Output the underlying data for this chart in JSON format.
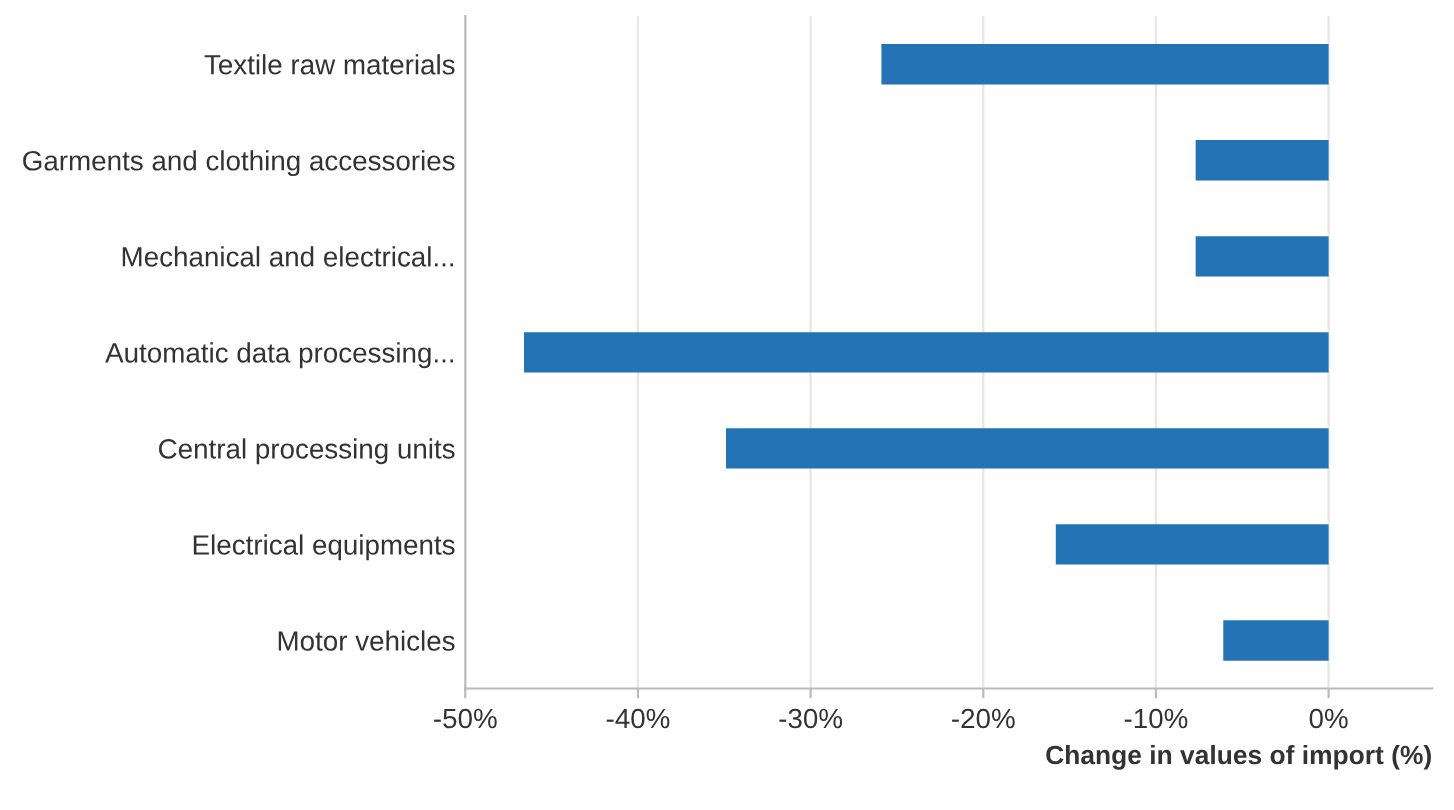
{
  "chart_data": {
    "type": "bar",
    "orientation": "horizontal",
    "xlabel": "Change in values of import (%)",
    "categories": [
      "Textile raw materials",
      "Garments and clothing accessories",
      "Mechanical and electrical...",
      "Automatic data processing...",
      "Central processing units",
      "Electrical equipments",
      "Motor vehicles"
    ],
    "values": [
      -25.9,
      -7.7,
      -7.7,
      -46.6,
      -34.9,
      -15.8,
      -6.1
    ],
    "color": "#2474b5",
    "xlim": [
      -50,
      6
    ],
    "xticks": [
      {
        "value": -50,
        "label": "-50%"
      },
      {
        "value": -40,
        "label": "-40%"
      },
      {
        "value": -30,
        "label": "-30%"
      },
      {
        "value": -20,
        "label": "-20%"
      },
      {
        "value": -10,
        "label": "-10%"
      },
      {
        "value": 0,
        "label": "0%"
      }
    ],
    "grid": "x"
  }
}
